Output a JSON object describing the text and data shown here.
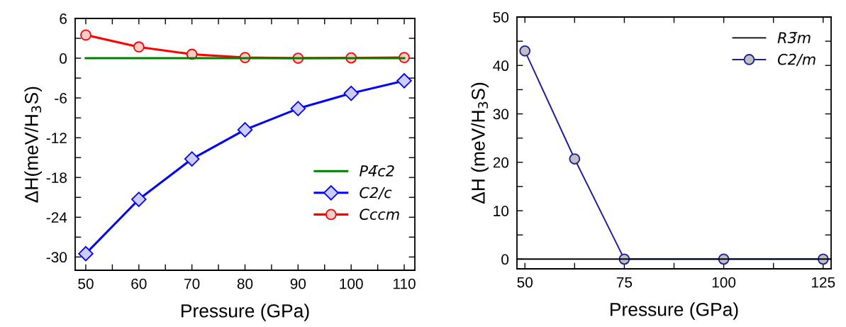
{
  "chart_data": [
    {
      "type": "line",
      "xlabel": "Pressure (GPa)",
      "ylabel": "ΔH(meV/H$_{3}$S)",
      "x": [
        50,
        60,
        70,
        80,
        90,
        100,
        110
      ],
      "series": [
        {
          "name": "P4̄c2",
          "color": "#008000",
          "marker": "none",
          "values": [
            0,
            0,
            0,
            0,
            0,
            0,
            0
          ]
        },
        {
          "name": "C2/c",
          "color": "#0000ff",
          "marker": "diamond",
          "values": [
            -29.5,
            -21.3,
            -15.2,
            -10.8,
            -7.6,
            -5.3,
            -3.4
          ]
        },
        {
          "name": "Cccm",
          "color": "#ff0000",
          "marker": "circle",
          "values": [
            3.5,
            1.7,
            0.6,
            0.1,
            0,
            0.05,
            0.1
          ]
        }
      ],
      "xlim": [
        48,
        112
      ],
      "ylim": [
        -32,
        6
      ],
      "xticks": [
        50,
        {
          "value": 55,
          "label": null
        },
        60,
        {
          "value": 65,
          "label": null
        },
        70,
        {
          "value": 75,
          "label": null
        },
        80,
        {
          "value": 85,
          "label": null
        },
        90,
        {
          "value": 95,
          "label": null
        },
        100,
        {
          "value": 105,
          "label": null
        },
        110
      ],
      "yticks": [
        {
          "value": -30,
          "label": "-30"
        },
        {
          "value": -27,
          "label": null
        },
        {
          "value": -24,
          "label": "-24"
        },
        {
          "value": -21,
          "label": null
        },
        {
          "value": -18,
          "label": "-18"
        },
        {
          "value": -15,
          "label": null
        },
        {
          "value": -12,
          "label": "-12"
        },
        {
          "value": -9,
          "label": null
        },
        {
          "value": -6,
          "label": "-6"
        },
        {
          "value": -3,
          "label": null
        },
        0,
        {
          "value": 3,
          "label": null
        },
        6
      ],
      "legend": "lower right",
      "grid": false,
      "line_style": "solid"
    },
    {
      "type": "line",
      "xlabel": "Pressure (GPa)",
      "ylabel": "ΔH (meV/H$_{3}$S)",
      "series": [
        {
          "name": "R3̄m",
          "color": "#000000",
          "marker": "none",
          "x": [
            48,
            127
          ],
          "values": [
            0,
            0
          ]
        },
        {
          "name": "C2/m",
          "color": "#1c1c9c",
          "marker": "circle",
          "x": [
            50,
            62.5,
            75,
            100,
            125
          ],
          "values": [
            43,
            20.7,
            0,
            0,
            0
          ]
        }
      ],
      "xlim": [
        48,
        127
      ],
      "ylim": [
        -2,
        50
      ],
      "xticks": [
        50,
        {
          "value": 62.5,
          "label": null
        },
        75,
        {
          "value": 87.5,
          "label": null
        },
        100,
        {
          "value": 112.5,
          "label": null
        },
        125
      ],
      "yticks": [
        0,
        {
          "value": 5,
          "label": null
        },
        10,
        {
          "value": 15,
          "label": null
        },
        20,
        {
          "value": 25,
          "label": null
        },
        30,
        {
          "value": 35,
          "label": null
        },
        40,
        {
          "value": 45,
          "label": null
        },
        50
      ],
      "legend": "top right",
      "grid": false,
      "line_style": "solid"
    }
  ]
}
